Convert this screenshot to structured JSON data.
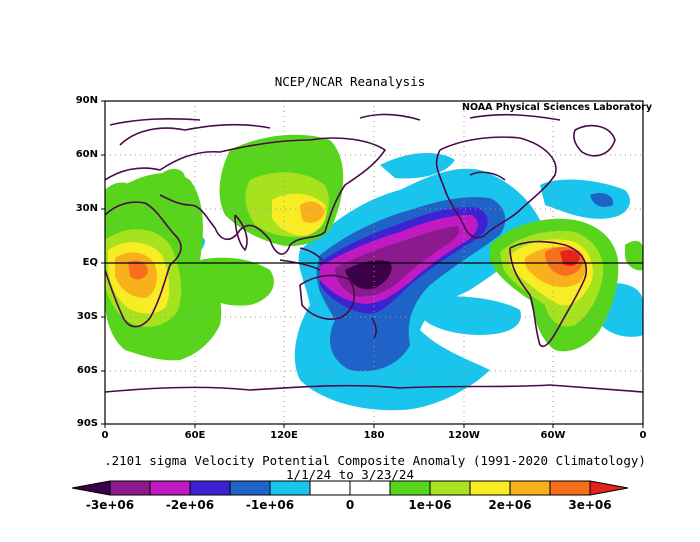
{
  "title": "NCEP/NCAR Reanalysis",
  "credit": "NOAA Physical Sciences Laboratory",
  "lat_labels": [
    "90N",
    "60N",
    "30N",
    "EQ",
    "30S",
    "60S",
    "90S"
  ],
  "lon_labels": [
    "0",
    "60E",
    "120E",
    "180",
    "120W",
    "60W",
    "0"
  ],
  "caption_line1": ".2101 sigma Velocity Potential  Composite Anomaly (1991-2020 Climatology)",
  "caption_line2": "1/1/24  to 3/23/24",
  "colorbar": {
    "labels": [
      "-3e+06",
      "-2e+06",
      "-1e+06",
      "0",
      "1e+06",
      "2e+06",
      "3e+06"
    ],
    "colors": [
      "#3a0048",
      "#8a1a8e",
      "#c01ac2",
      "#3c22d0",
      "#1f63c9",
      "#19c5ec",
      "#ffffff",
      "#ffffff",
      "#58d41c",
      "#a6e21d",
      "#f8ec24",
      "#f8b11c",
      "#f66f1c",
      "#e32418"
    ]
  },
  "map_colors": {
    "land_outline": "#4a0a4a",
    "equator": "#000000",
    "grid": "#9a9a9a"
  }
}
